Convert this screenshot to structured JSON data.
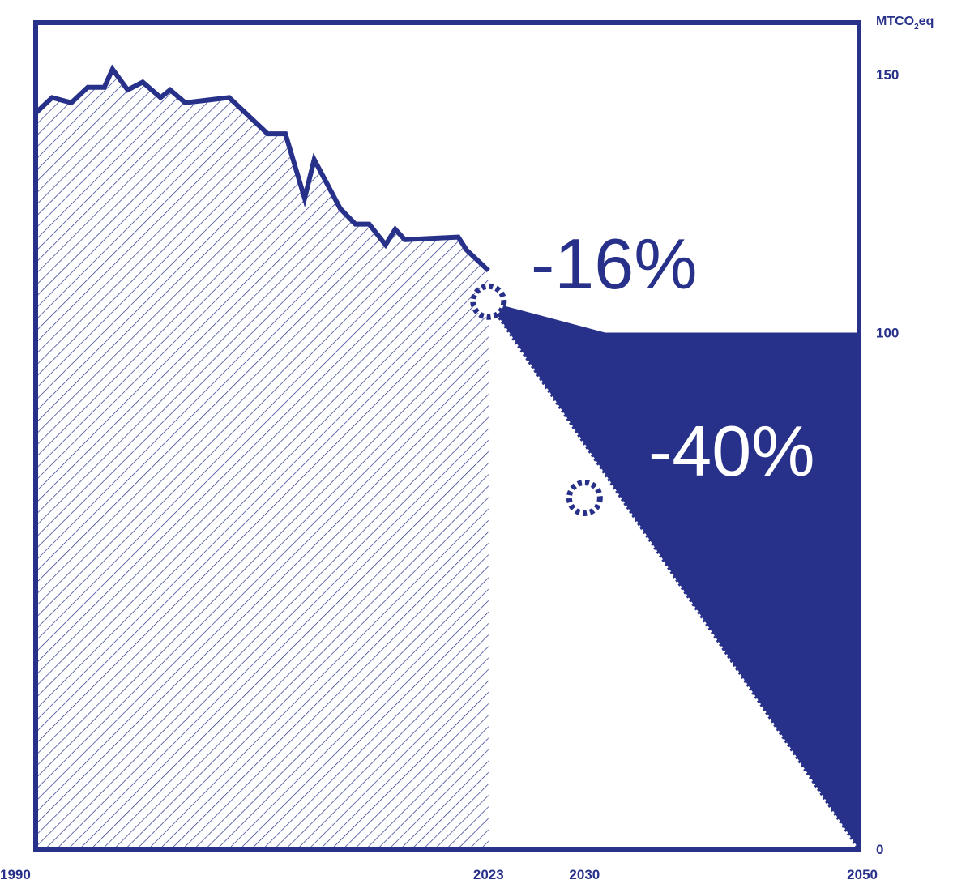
{
  "chart_data": {
    "type": "area",
    "title": "",
    "xlabel": "",
    "ylabel": "",
    "unit": {
      "prefix": "MTCO",
      "sub": "2",
      "suffix": "eq"
    },
    "xlim": [
      1990,
      2050
    ],
    "ylim": [
      0,
      160
    ],
    "x_ticks": [
      1990,
      2023,
      2030,
      2050
    ],
    "y_ticks": [
      0,
      100,
      150
    ],
    "y_axis_side": "right",
    "grid": false,
    "colors": {
      "primary": "#283189",
      "background": "#ffffff"
    },
    "series": [
      {
        "style": "hatched-area",
        "x": [
          1990,
          1991.2,
          1992.6,
          1993.8,
          1995,
          1995.6,
          1996.7,
          1997.8,
          1999.1,
          1999.8,
          2000.9,
          2004.1,
          2006.9,
          2008.2,
          2009.6,
          2010.3,
          2012.2,
          2013.3,
          2014.3,
          2015.5,
          2016.2,
          2016.9,
          2020.8,
          2021.4,
          2023
        ],
        "values": [
          142.5,
          145.5,
          144.5,
          147.5,
          147.5,
          151,
          147,
          148.5,
          145.5,
          147,
          144.5,
          145.5,
          138.5,
          138.5,
          126,
          133.5,
          124,
          121,
          121,
          117,
          120,
          118,
          118.5,
          116,
          112
        ]
      },
      {
        "name": "",
        "style": "filled-gap",
        "x": [
          2023,
          2031.5,
          2050
        ],
        "values": [
          106,
          100,
          100
        ]
      },
      {
        "style": "dashed-trajectory",
        "x": [
          2023,
          2050
        ],
        "values": [
          106,
          0
        ]
      }
    ],
    "milestones": [
      {
        "x": 2023,
        "y": 106,
        "label": "-16%",
        "label_color": "#283189"
      },
      {
        "x": 2030,
        "y": 68,
        "label": "-40%",
        "label_color": "#ffffff"
      }
    ]
  }
}
